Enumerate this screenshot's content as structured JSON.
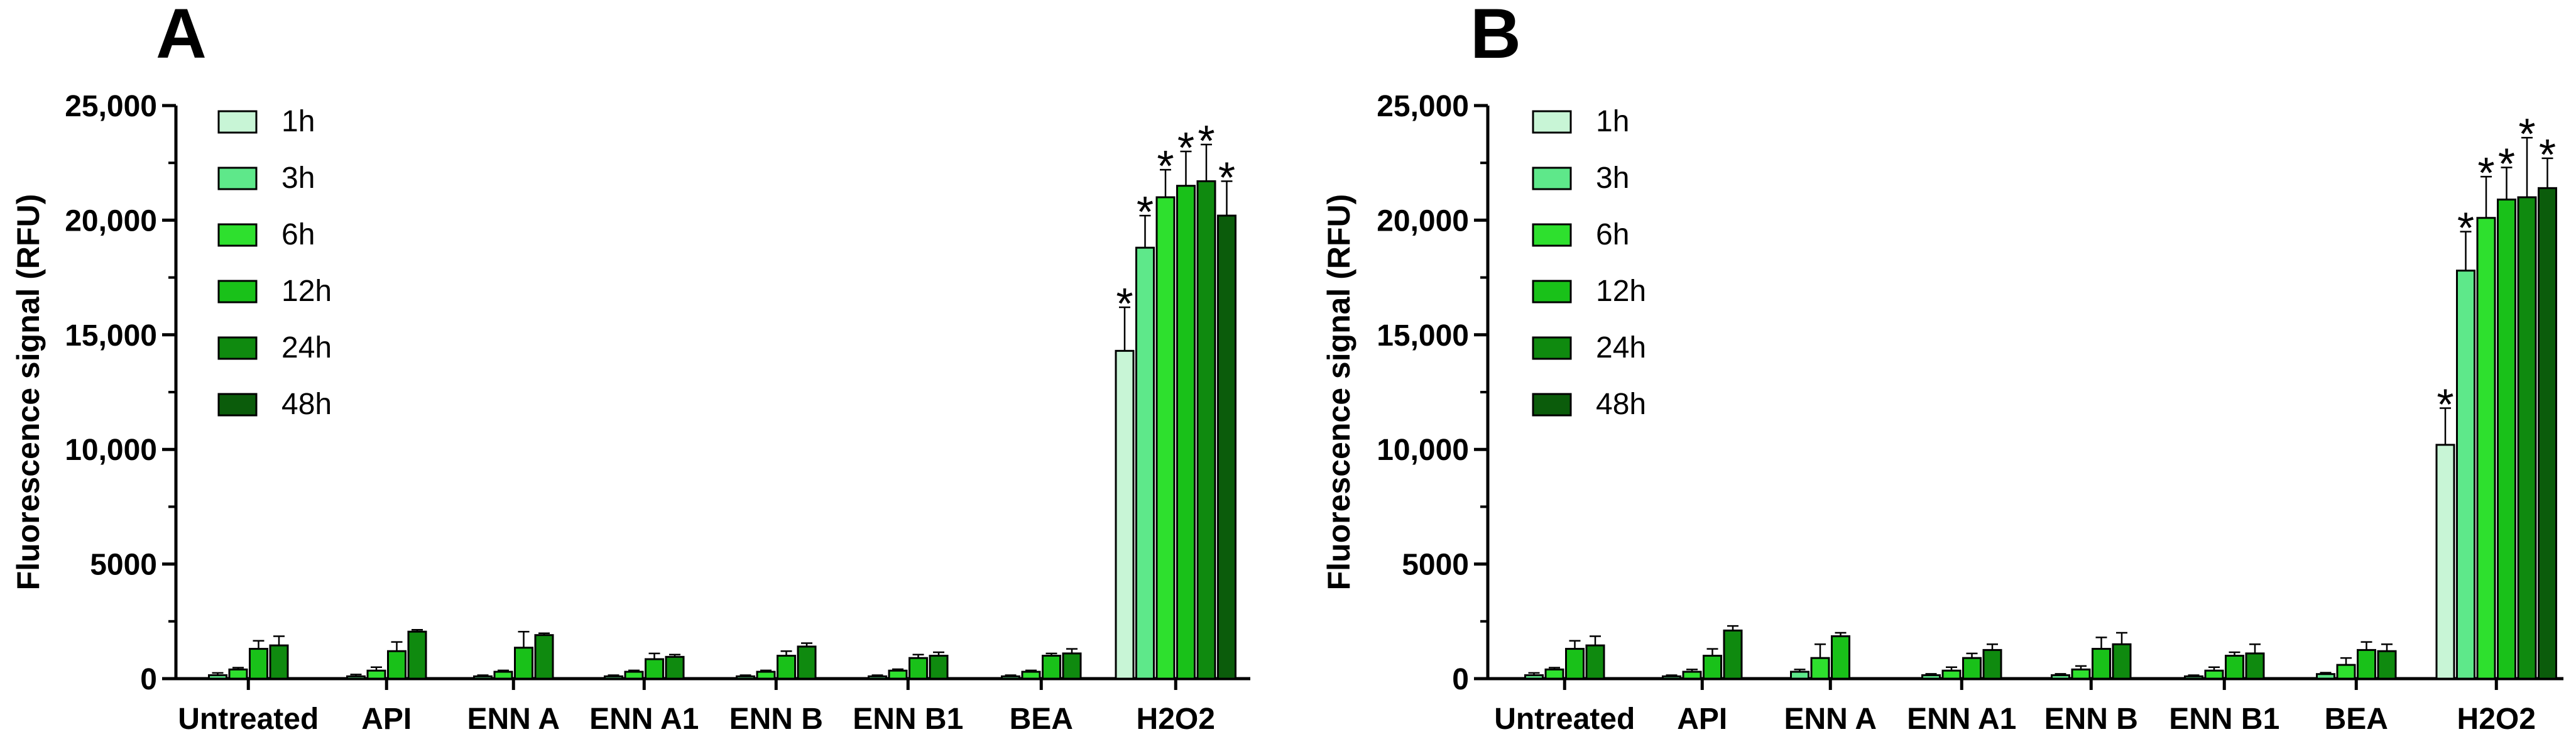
{
  "series_colors": [
    "#c8f5d6",
    "#5ee88a",
    "#2ee02e",
    "#19c119",
    "#0f8a0f",
    "#0b5c0b"
  ],
  "chart_data": [
    {
      "type": "bar",
      "panel": "A",
      "ylabel": "Fluorescence signal (RFU)",
      "ylim": [
        0,
        25000
      ],
      "yticks": [
        "0",
        "5000",
        "10,000",
        "15,000",
        "20,000",
        "25,000"
      ],
      "ytick_values": [
        0,
        5000,
        10000,
        15000,
        20000,
        25000
      ],
      "legend_position": "top-left",
      "categories": [
        "Untreated",
        "API",
        "ENN A",
        "ENN A1",
        "ENN B",
        "ENN B1",
        "BEA",
        "H2O2"
      ],
      "series": [
        {
          "name": "1h",
          "values": [
            0,
            0,
            0,
            0,
            0,
            0,
            0,
            14300
          ],
          "errors": [
            0,
            0,
            0,
            0,
            0,
            0,
            0,
            1900
          ]
        },
        {
          "name": "3h",
          "values": [
            150,
            100,
            100,
            100,
            100,
            100,
            100,
            18800
          ],
          "errors": [
            100,
            80,
            50,
            50,
            50,
            50,
            50,
            1400
          ]
        },
        {
          "name": "6h",
          "values": [
            400,
            350,
            300,
            300,
            300,
            350,
            300,
            21000
          ],
          "errors": [
            80,
            150,
            60,
            60,
            60,
            60,
            60,
            1200
          ]
        },
        {
          "name": "12h",
          "values": [
            1300,
            1200,
            1350,
            850,
            1000,
            900,
            1000,
            21500
          ],
          "errors": [
            350,
            400,
            700,
            250,
            200,
            150,
            100,
            1500
          ]
        },
        {
          "name": "24h",
          "values": [
            1450,
            2050,
            1900,
            950,
            1400,
            1000,
            1100,
            21700
          ],
          "errors": [
            400,
            80,
            80,
            100,
            150,
            150,
            200,
            1600
          ]
        },
        {
          "name": "48h",
          "values": [
            0,
            0,
            0,
            0,
            0,
            0,
            0,
            20200
          ],
          "errors": [
            0,
            0,
            0,
            0,
            0,
            0,
            0,
            1500
          ]
        }
      ],
      "annotations": [
        "*",
        "*",
        "*",
        "*",
        "*",
        "*"
      ]
    },
    {
      "type": "bar",
      "panel": "B",
      "ylabel": "Fluorescence signal (RFU)",
      "ylim": [
        0,
        25000
      ],
      "yticks": [
        "0",
        "5000",
        "10,000",
        "15,000",
        "20,000",
        "25,000"
      ],
      "ytick_values": [
        0,
        5000,
        10000,
        15000,
        20000,
        25000
      ],
      "legend_position": "top-left",
      "categories": [
        "Untreated",
        "API",
        "ENN A",
        "ENN A1",
        "ENN B",
        "ENN B1",
        "BEA",
        "H2O2"
      ],
      "series": [
        {
          "name": "1h",
          "values": [
            0,
            0,
            0,
            0,
            0,
            0,
            0,
            10200
          ],
          "errors": [
            0,
            0,
            0,
            0,
            0,
            0,
            0,
            1600
          ]
        },
        {
          "name": "3h",
          "values": [
            150,
            100,
            300,
            150,
            150,
            100,
            200,
            17800
          ],
          "errors": [
            100,
            50,
            100,
            60,
            60,
            50,
            60,
            1700
          ]
        },
        {
          "name": "6h",
          "values": [
            400,
            300,
            900,
            350,
            400,
            350,
            600,
            20100
          ],
          "errors": [
            80,
            100,
            600,
            150,
            150,
            150,
            300,
            1800
          ]
        },
        {
          "name": "12h",
          "values": [
            1300,
            1000,
            1850,
            900,
            1300,
            1000,
            1250,
            20900
          ],
          "errors": [
            350,
            300,
            150,
            200,
            500,
            150,
            350,
            1400
          ]
        },
        {
          "name": "24h",
          "values": [
            1450,
            2100,
            0,
            1250,
            1500,
            1100,
            1200,
            21000
          ],
          "errors": [
            400,
            200,
            0,
            250,
            500,
            400,
            300,
            2600
          ]
        },
        {
          "name": "48h",
          "values": [
            0,
            0,
            0,
            0,
            0,
            0,
            0,
            21400
          ],
          "errors": [
            0,
            0,
            0,
            0,
            0,
            0,
            0,
            1300
          ]
        }
      ],
      "annotations": [
        "*",
        "*",
        "*",
        "*",
        "*",
        "*"
      ]
    }
  ]
}
